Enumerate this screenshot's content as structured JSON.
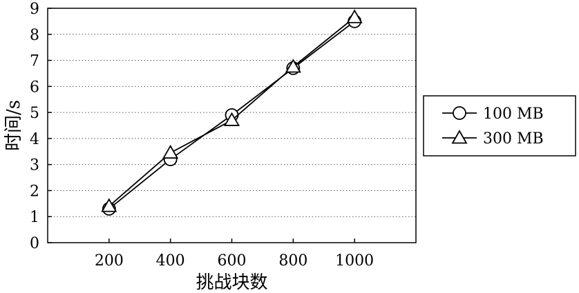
{
  "chart_data": {
    "type": "line",
    "title": "",
    "xlabel": "挑战块数",
    "ylabel": "时间/s",
    "x": [
      200,
      400,
      600,
      800,
      1000
    ],
    "x_tick_labels": [
      "200",
      "400",
      "600",
      "800",
      "1000"
    ],
    "xlim": [
      0,
      1200
    ],
    "ylim": [
      0,
      9
    ],
    "y_ticks": [
      0,
      1,
      2,
      3,
      4,
      5,
      6,
      7,
      8,
      9
    ],
    "y_tick_labels": [
      "0",
      "1",
      "2",
      "3",
      "4",
      "5",
      "6",
      "7",
      "8",
      "9"
    ],
    "grid": "horizontal dotted",
    "legend_position": "right",
    "series": [
      {
        "name": "100 MB",
        "marker": "circle",
        "values": [
          1.3,
          3.2,
          4.9,
          6.7,
          8.5
        ]
      },
      {
        "name": "300 MB",
        "marker": "triangle",
        "values": [
          1.4,
          3.45,
          4.7,
          6.75,
          8.65
        ]
      }
    ]
  }
}
